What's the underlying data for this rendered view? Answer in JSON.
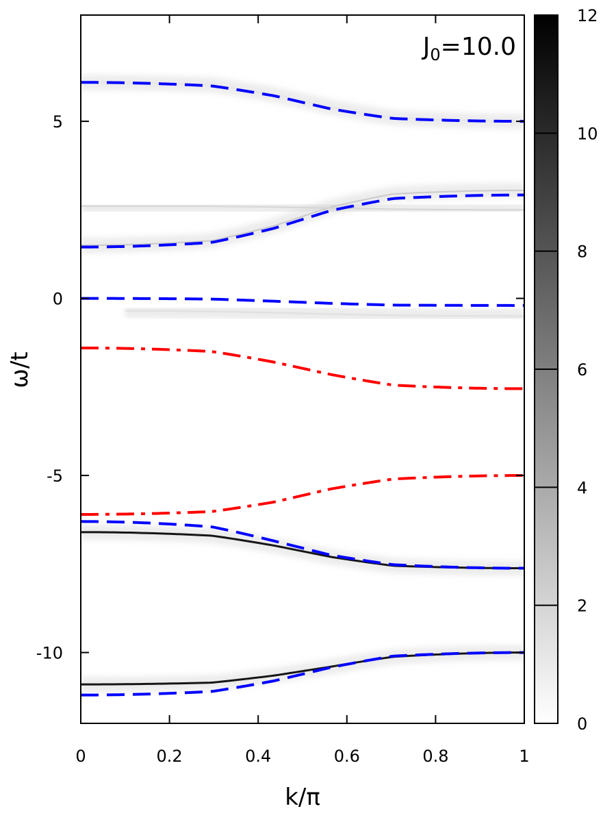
{
  "chart_data": {
    "type": "heatmap",
    "title": "",
    "xlabel": "k/π",
    "ylabel": "ω/t",
    "xlim": [
      0,
      1
    ],
    "ylim": [
      -12,
      8
    ],
    "x_ticks": [
      "0",
      "0.2",
      "0.4",
      "0.6",
      "0.8",
      "1"
    ],
    "y_ticks": [
      "-10",
      "-5",
      "0",
      "5"
    ],
    "annotation": {
      "prefix": "J",
      "subscript": "0",
      "suffix": "=10.0"
    },
    "colorbar": {
      "min": 0,
      "max": 12,
      "ticks": [
        "0",
        "2",
        "4",
        "6",
        "8",
        "10",
        "12"
      ],
      "colormap": "white-to-black"
    },
    "colors": {
      "blue_dashed": "#0000ff",
      "red_dashdot": "#ff0000",
      "spectral": "#000000"
    },
    "intensity_bands": [
      {
        "k": [
          0,
          0.2,
          0.4,
          0.6,
          0.8,
          1.0
        ],
        "omega": [
          6.1,
          6.03,
          5.75,
          5.4,
          5.1,
          5.0
        ],
        "peak": 1.2
      },
      {
        "k": [
          0,
          0.2,
          0.4,
          0.6,
          0.8,
          1.0
        ],
        "omega": [
          1.5,
          1.63,
          2.05,
          2.58,
          2.95,
          3.05
        ],
        "peak": 2.5
      },
      {
        "k": [
          0,
          0.2,
          0.4,
          0.6,
          0.8,
          1.0
        ],
        "omega": [
          2.6,
          2.6,
          2.58,
          2.55,
          2.52,
          2.5
        ],
        "peak": 2.0
      },
      {
        "k": [
          0.1,
          0.2,
          0.4,
          0.6,
          0.8,
          1.0
        ],
        "omega": [
          -0.35,
          -0.37,
          -0.41,
          -0.45,
          -0.48,
          -0.5
        ],
        "peak": 1.5
      },
      {
        "k": [
          0,
          0.2,
          0.4,
          0.6,
          0.8,
          1.0
        ],
        "omega": [
          -6.6,
          -6.7,
          -6.98,
          -7.3,
          -7.55,
          -7.62
        ],
        "peak": 11.0
      },
      {
        "k": [
          0,
          0.2,
          0.4,
          0.6,
          0.8,
          1.0
        ],
        "omega": [
          -10.9,
          -10.85,
          -10.65,
          -10.4,
          -10.12,
          -10.0
        ],
        "peak": 11.0
      }
    ],
    "series": [
      {
        "style": "blue-dashed",
        "k": [
          0,
          0.2,
          0.4,
          0.6,
          0.8,
          1.0
        ],
        "omega": [
          6.1,
          6.0,
          5.72,
          5.35,
          5.08,
          5.0
        ]
      },
      {
        "style": "blue-dashed",
        "k": [
          0,
          0.2,
          0.4,
          0.6,
          0.8,
          1.0
        ],
        "omega": [
          1.45,
          1.58,
          1.98,
          2.48,
          2.82,
          2.92
        ]
      },
      {
        "style": "blue-dashed",
        "k": [
          0,
          0.2,
          0.4,
          0.6,
          0.8,
          1.0
        ],
        "omega": [
          0.0,
          -0.02,
          -0.08,
          -0.14,
          -0.19,
          -0.2
        ]
      },
      {
        "style": "red-dashdot",
        "k": [
          0,
          0.2,
          0.4,
          0.6,
          0.8,
          1.0
        ],
        "omega": [
          -1.4,
          -1.5,
          -1.8,
          -2.15,
          -2.45,
          -2.55
        ]
      },
      {
        "style": "red-dashdot",
        "k": [
          0,
          0.2,
          0.4,
          0.6,
          0.8,
          1.0
        ],
        "omega": [
          -6.1,
          -6.02,
          -5.75,
          -5.38,
          -5.1,
          -5.0
        ]
      },
      {
        "style": "blue-dashed",
        "k": [
          0,
          0.2,
          0.4,
          0.6,
          0.8,
          1.0
        ],
        "omega": [
          -6.3,
          -6.45,
          -6.85,
          -7.25,
          -7.52,
          -7.62
        ]
      },
      {
        "style": "blue-dashed",
        "k": [
          0,
          0.2,
          0.4,
          0.6,
          0.8,
          1.0
        ],
        "omega": [
          -11.2,
          -11.1,
          -10.8,
          -10.42,
          -10.1,
          -10.0
        ]
      }
    ]
  }
}
